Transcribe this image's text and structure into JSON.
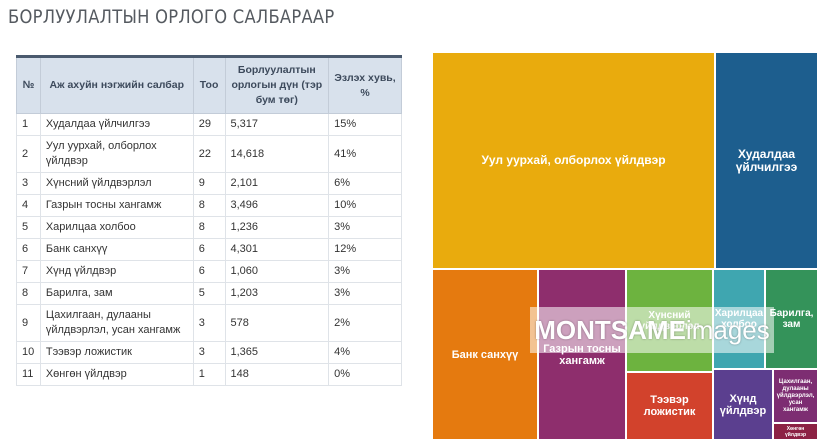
{
  "page_title": "БОРЛУУЛАЛТЫН ОРЛОГО САЛБАРААР",
  "table": {
    "headers": [
      "№",
      "Аж ахуйн нэгжийн салбар",
      "Тоо",
      "Борлуулалтын орлогын дүн (тэр бум төг)",
      "Эзлэх хувь, %"
    ],
    "rows": [
      [
        "1",
        "Худалдаа үйлчилгээ",
        "29",
        "5,317",
        "15%"
      ],
      [
        "2",
        "Уул уурхай, олборлох үйлдвэр",
        "22",
        "14,618",
        "41%"
      ],
      [
        "3",
        "Хүнсний үйлдвэрлэл",
        "9",
        "2,101",
        "6%"
      ],
      [
        "4",
        "Газрын тосны хангамж",
        "8",
        "3,496",
        "10%"
      ],
      [
        "5",
        "Харилцаа холбоо",
        "8",
        "1,236",
        "3%"
      ],
      [
        "6",
        "Банк санхүү",
        "6",
        "4,301",
        "12%"
      ],
      [
        "7",
        "Хүнд үйлдвэр",
        "6",
        "1,060",
        "3%"
      ],
      [
        "8",
        "Барилга, зам",
        "5",
        "1,203",
        "3%"
      ],
      [
        "9",
        "Цахилгаан, дулааны үйлдвэрлэл, усан хангамж",
        "3",
        "578",
        "2%"
      ],
      [
        "10",
        "Тээвэр ложистик",
        "3",
        "1,365",
        "4%"
      ],
      [
        "11",
        "Хөнгөн үйлдвэр",
        "1",
        "148",
        "0%"
      ]
    ]
  },
  "chart_data": {
    "type": "treemap",
    "items": [
      {
        "label": "Уул уурхай, олборлох үйлдвэр",
        "value": 14618,
        "color": "#e9ab0d"
      },
      {
        "label": "Худалдаа үйлчилгээ",
        "value": 5317,
        "color": "#1d5e8e"
      },
      {
        "label": "Банк санхүү",
        "value": 4301,
        "color": "#e57a0f"
      },
      {
        "label": "Газрын тосны хангамж",
        "value": 3496,
        "color": "#8e2e6d"
      },
      {
        "label": "Хүнсний үйлдвэрлэл",
        "value": 2101,
        "color": "#6db33f"
      },
      {
        "label": "Тээвэр ложистик",
        "value": 1365,
        "color": "#d2422c"
      },
      {
        "label": "Харилцаа холбоо",
        "value": 1236,
        "color": "#3fa6b0"
      },
      {
        "label": "Барилга, зам",
        "value": 1203,
        "color": "#34935a"
      },
      {
        "label": "Хүнд үйлдвэр",
        "value": 1060,
        "color": "#5b3f8f"
      },
      {
        "label": "Цахилгаан, дулааны үйлдвэрлэл, усан хангамж",
        "value": 578,
        "color": "#7d2d72"
      },
      {
        "label": "Хөнгөн үйлдвэр",
        "value": 148,
        "color": "#8c2244"
      }
    ]
  },
  "watermark": {
    "brand": "MONTSAME",
    "suffix": "images"
  }
}
